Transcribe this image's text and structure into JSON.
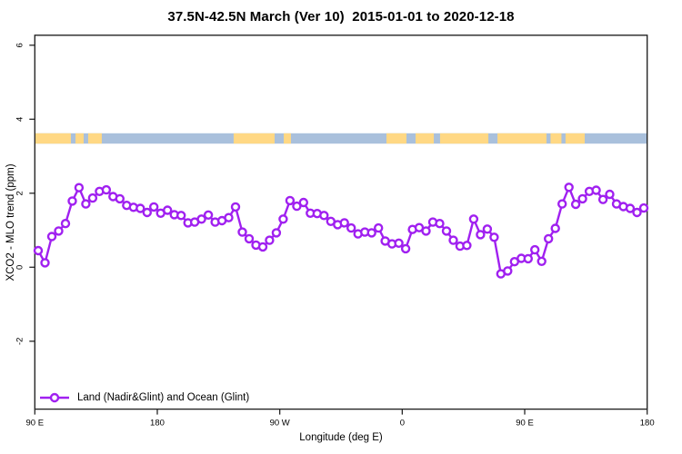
{
  "figure": {
    "title": "37.5N-42.5N March (Ver 10)  2015-01-01 to 2020-12-18",
    "xlabel": "Longitude (deg E)",
    "ylabel": "XCO2 - MLO trend (ppm)",
    "legend_label": "Land (Nadir&Glint) and Ocean (Glint)"
  },
  "colors": {
    "series": "#A020F0",
    "marker_fill": "#FFFFFF",
    "land_band": "#FFD884",
    "ocean_band": "#A9C0DC",
    "axis": "#262626",
    "text": "#000000"
  },
  "chart_data": {
    "type": "line",
    "title": "37.5N-42.5N March (Ver 10)  2015-01-01 to 2020-12-18",
    "xlabel": "Longitude (deg E)",
    "ylabel": "XCO2 - MLO trend (ppm)",
    "grid": false,
    "legend_position": "bottom-left",
    "x_axis": {
      "note": "axis spans 450 deg eastward starting at 90E (wraps past dateline and Greenwich back to 180)",
      "range_deg": [
        90,
        540
      ],
      "ticks_deg": [
        90,
        180,
        270,
        360,
        450,
        540
      ],
      "tick_labels": [
        "90 E",
        "180",
        "90 W",
        "0",
        "90 E",
        "180"
      ]
    },
    "y_axis": {
      "range": [
        -3.835,
        6.27
      ],
      "ticks": [
        6,
        4,
        2,
        0,
        -2
      ],
      "tick_labels": [
        "6",
        "4",
        "2",
        "0",
        "-2"
      ]
    },
    "series": [
      {
        "name": "Land (Nadir&Glint) and Ocean (Glint)",
        "color": "#A020F0",
        "marker": "open-circle",
        "x_start_deg": 92.5,
        "x_step_deg": 5,
        "values": [
          0.45,
          0.12,
          0.83,
          0.98,
          1.18,
          1.79,
          2.15,
          1.71,
          1.87,
          2.05,
          2.09,
          1.91,
          1.85,
          1.67,
          1.62,
          1.59,
          1.48,
          1.63,
          1.46,
          1.54,
          1.42,
          1.4,
          1.2,
          1.22,
          1.3,
          1.41,
          1.22,
          1.26,
          1.34,
          1.63,
          0.95,
          0.77,
          0.6,
          0.55,
          0.73,
          0.93,
          1.3,
          1.8,
          1.65,
          1.75,
          1.46,
          1.45,
          1.4,
          1.24,
          1.15,
          1.2,
          1.06,
          0.9,
          0.95,
          0.93,
          1.06,
          0.71,
          0.63,
          0.65,
          0.5,
          1.02,
          1.07,
          0.98,
          1.22,
          1.18,
          0.98,
          0.73,
          0.57,
          0.59,
          1.3,
          0.88,
          1.03,
          0.81,
          -0.18,
          -0.1,
          0.15,
          0.24,
          0.23,
          0.47,
          0.16,
          0.77,
          1.05,
          1.71,
          2.16,
          1.7,
          1.85,
          2.05,
          2.08,
          1.83,
          1.97,
          1.71,
          1.64,
          1.59,
          1.48,
          1.6
        ]
      }
    ],
    "surface_type_band": {
      "description": "land(orange)/ocean(blue) strip along longitude",
      "y_ppm": [
        3.34,
        3.62
      ],
      "land_color": "#FFD884",
      "ocean_color": "#A9C0DC",
      "land_segments_deg": [
        [
          90,
          116.5
        ],
        [
          119.9,
          125.9
        ],
        [
          129.2,
          139.2
        ],
        [
          236.1,
          266.2
        ],
        [
          272.9,
          278.2
        ],
        [
          348.4,
          363.1
        ],
        [
          369.8,
          383.2
        ],
        [
          387.8,
          423.3
        ],
        [
          430,
          466
        ],
        [
          469,
          477
        ],
        [
          480,
          494.1
        ]
      ]
    }
  }
}
